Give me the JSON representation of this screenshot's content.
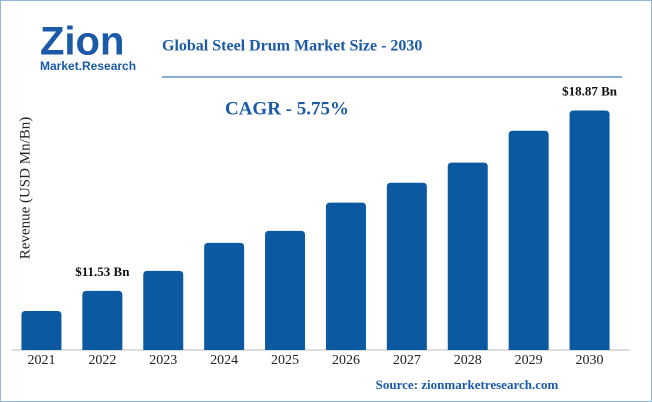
{
  "logo": {
    "name": "Zion",
    "tagline": "Market.Research"
  },
  "chart_data": {
    "type": "bar",
    "title": "Global Steel Drum Market Size - 2030",
    "annotation": "CAGR - 5.75%",
    "y_label": "Revenue (USD Mn/Bn)",
    "source": "Source: zionmarketresearch.com",
    "categories": [
      "2021",
      "2022",
      "2023",
      "2024",
      "2025",
      "2026",
      "2027",
      "2028",
      "2029",
      "2030"
    ],
    "values": [
      10.71,
      11.53,
      12.34,
      13.48,
      13.97,
      15.12,
      15.93,
      16.75,
      18.05,
      18.87
    ],
    "value_labels": [
      null,
      "$11.53 Bn",
      null,
      null,
      null,
      null,
      null,
      null,
      null,
      "$18.87 Bn"
    ],
    "color": "#0b59a1",
    "ylim": [
      9.12,
      19.3
    ]
  }
}
